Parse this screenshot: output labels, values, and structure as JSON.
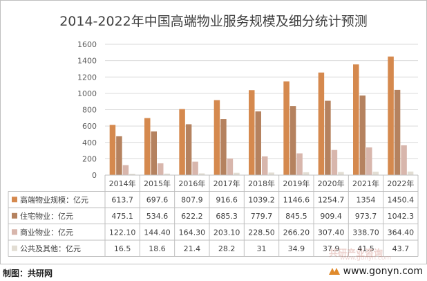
{
  "title": "2014-2022年中国高端物业服务规模及细分统计预测",
  "footer": {
    "source": "制图：共研网",
    "site": "www.gonyn.com",
    "watermark": "共研产业咨询",
    "watermark_url": "www.gonyn.com"
  },
  "chart_data": {
    "type": "bar",
    "title": "2014-2022年中国高端物业服务规模及细分统计预测",
    "categories": [
      "2014年",
      "2015年",
      "2016年",
      "2017年",
      "2018年",
      "2019年",
      "2020年",
      "2021年",
      "2022年"
    ],
    "ylim": [
      0,
      1600
    ],
    "yticks": [
      0,
      200,
      400,
      600,
      800,
      1000,
      1200,
      1400,
      1600
    ],
    "grid": true,
    "legend": "data-table",
    "series": [
      {
        "name": "高端物业规模：亿元",
        "color": "#d5894e",
        "values": [
          613.7,
          697.6,
          807.9,
          916.6,
          1039.2,
          1146.6,
          1254.7,
          1354,
          1450.4
        ],
        "labels": [
          "613.7",
          "697.6",
          "807.9",
          "916.6",
          "1039.2",
          "1146.6",
          "1254.7",
          "1354",
          "1450.4"
        ]
      },
      {
        "name": "住宅物业：亿元",
        "color": "#b5825f",
        "values": [
          475.1,
          534.6,
          622.2,
          685.3,
          779.7,
          845.5,
          909.4,
          973.7,
          1042.3
        ],
        "labels": [
          "475.1",
          "534.6",
          "622.2",
          "685.3",
          "779.7",
          "845.5",
          "909.4",
          "973.7",
          "1042.3"
        ]
      },
      {
        "name": "商业物业：亿元",
        "color": "#d8b6ac",
        "values": [
          122.1,
          144.4,
          164.3,
          203.1,
          228.5,
          266.2,
          307.4,
          338.7,
          364.4
        ],
        "labels": [
          "122.10",
          "144.40",
          "164.30",
          "203.10",
          "228.50",
          "266.20",
          "307.40",
          "338.70",
          "364.40"
        ]
      },
      {
        "name": "公共及其他：亿元",
        "color": "#e2ddd3",
        "values": [
          16.5,
          18.6,
          21.4,
          28.2,
          31,
          34.9,
          37.9,
          41.5,
          43.7
        ],
        "labels": [
          "16.5",
          "18.6",
          "21.4",
          "28.2",
          "31",
          "34.9",
          "37.9",
          "41.5",
          "43.7"
        ]
      }
    ]
  }
}
